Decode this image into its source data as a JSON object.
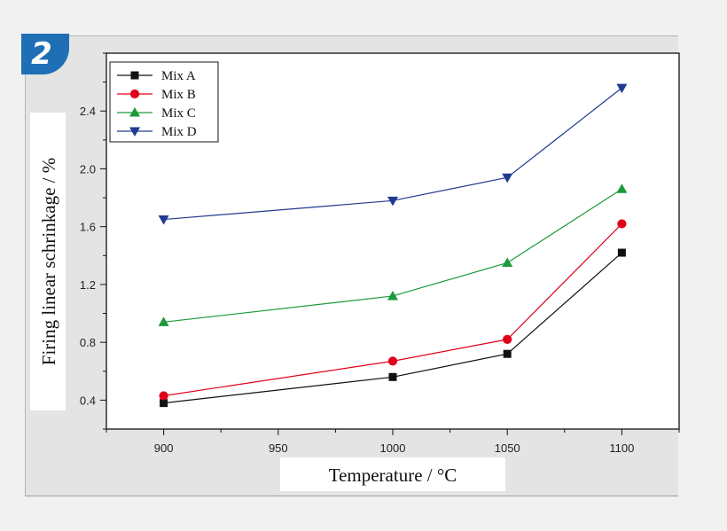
{
  "badge": {
    "number": "2"
  },
  "chart_data": {
    "type": "line",
    "title": "",
    "xlabel": "Temperature / °C",
    "ylabel": "Firing linear schrinkage / %",
    "x": [
      900,
      1000,
      1050,
      1100
    ],
    "xlim": [
      875,
      1125
    ],
    "ylim": [
      0.2,
      2.8
    ],
    "xticks": [
      900,
      950,
      1000,
      1050,
      1100
    ],
    "xtick_labels": [
      "900",
      "950",
      "1000",
      "1050",
      "1100"
    ],
    "yticks": [
      0.4,
      0.8,
      1.2,
      1.6,
      2.0,
      2.4
    ],
    "ytick_labels": [
      "0.4",
      "0.8",
      "1.2",
      "1.6",
      "2.0",
      "2.4"
    ],
    "grid": false,
    "legend_position": "top-left",
    "series": [
      {
        "name": "Mix A",
        "values": [
          0.38,
          0.56,
          0.72,
          1.42
        ],
        "color": "#111111",
        "marker": "square"
      },
      {
        "name": "Mix B",
        "values": [
          0.43,
          0.67,
          0.82,
          1.62
        ],
        "color": "#e0001b",
        "marker": "circle"
      },
      {
        "name": "Mix C",
        "values": [
          0.94,
          1.12,
          1.35,
          1.86
        ],
        "color": "#1a9a3a",
        "marker": "triangle-up"
      },
      {
        "name": "Mix D",
        "values": [
          1.65,
          1.78,
          1.94,
          2.56
        ],
        "color": "#1f3a8f",
        "marker": "triangle-down"
      }
    ]
  }
}
